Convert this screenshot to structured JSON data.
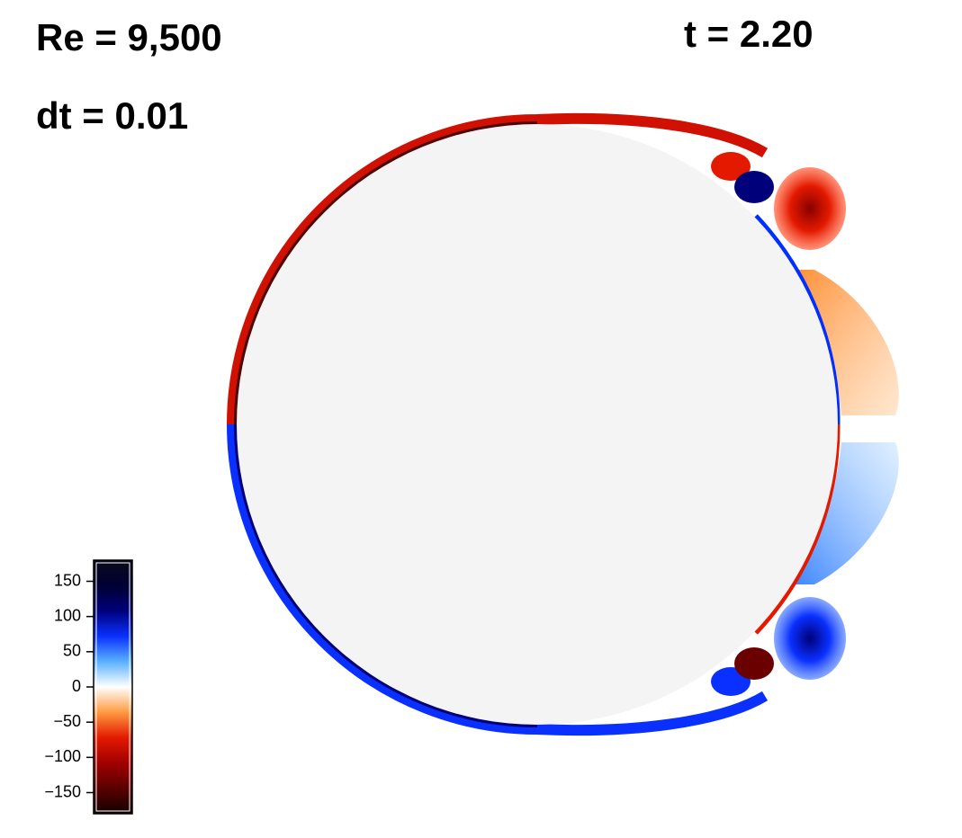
{
  "chart_data": {
    "type": "heatmap",
    "annotations": [
      "Re = 9,500",
      "t = 2.20",
      "dt = 0.01"
    ],
    "colormap": [
      "#120000",
      "#5a0000",
      "#a00000",
      "#e31a00",
      "#ff9a40",
      "#ffffff",
      "#5ab0ff",
      "#0a30ff",
      "#00007a",
      "#000033",
      "#0a0a1a"
    ],
    "clim": [
      -180,
      180
    ],
    "cticks": [
      {
        "value": -150,
        "label": "−150"
      },
      {
        "value": -100,
        "label": "−100"
      },
      {
        "value": -50,
        "label": "−50"
      },
      0,
      50,
      100,
      150
    ]
  }
}
